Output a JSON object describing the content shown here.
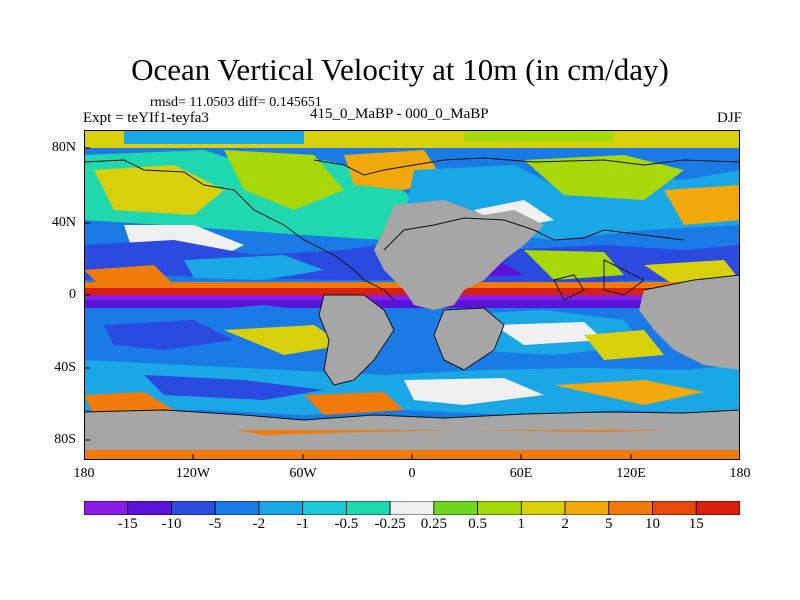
{
  "title": "Ocean Vertical Velocity at 10m (in cm/day)",
  "stats": "rmsd= 11.0503 diff= 0.145651",
  "experiment": "Expt = teYIf1-teyfa3",
  "difference_case": "415_0_MaBP - 000_0_MaBP",
  "season": "DJF",
  "lat_ticks": [
    "80N",
    "40N",
    "0",
    "40S",
    "80S"
  ],
  "lon_ticks": [
    "180",
    "120W",
    "60W",
    "0",
    "60E",
    "120E",
    "180"
  ],
  "colorbar": {
    "labels": [
      "-15",
      "-10",
      "-5",
      "-2",
      "-1",
      "-0.5",
      "-0.25",
      "0.25",
      "0.5",
      "1",
      "2",
      "5",
      "10",
      "15"
    ],
    "colors": [
      "#8a1ce6",
      "#5a14d9",
      "#2a4ae0",
      "#1a7be6",
      "#1aa7e6",
      "#1ac8d8",
      "#20d8b0",
      "#f0f0f0",
      "#6ed820",
      "#a8d80a",
      "#d8d00a",
      "#f0a80a",
      "#f07a0a",
      "#e84a0a",
      "#d8200a"
    ]
  },
  "land_color": "#a6a6a6"
}
